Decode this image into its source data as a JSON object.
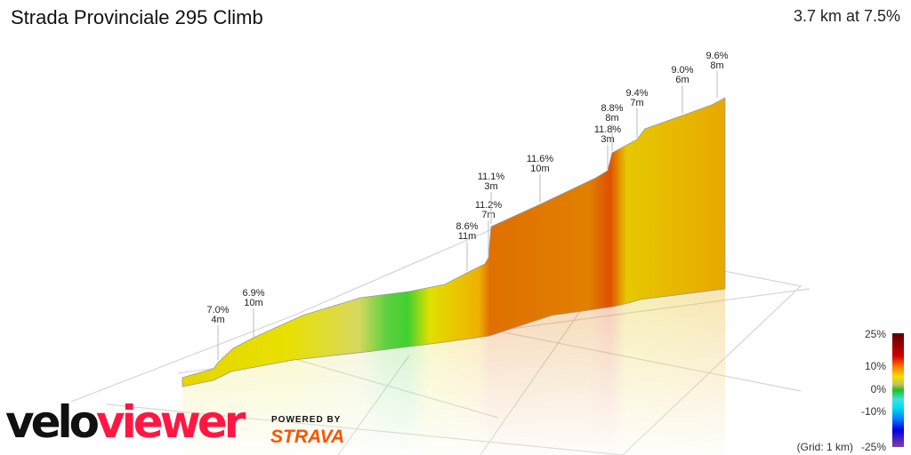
{
  "header": {
    "title": "Strada Provinciale 295 Climb",
    "summary": "3.7 km at 7.5%"
  },
  "chart_data": {
    "type": "area",
    "title": "Strada Provinciale 295 Climb",
    "subtitle": "3.7 km at 7.5%",
    "annotations": [
      {
        "grade": "7.0%",
        "length": "4m"
      },
      {
        "grade": "6.9%",
        "length": "10m"
      },
      {
        "grade": "8.6%",
        "length": "11m"
      },
      {
        "grade": "11.2%",
        "length": "7m"
      },
      {
        "grade": "11.1%",
        "length": "3m"
      },
      {
        "grade": "11.6%",
        "length": "10m"
      },
      {
        "grade": "11.8%",
        "length": "3m"
      },
      {
        "grade": "8.8%",
        "length": "8m"
      },
      {
        "grade": "9.4%",
        "length": "7m"
      },
      {
        "grade": "9.0%",
        "length": "6m"
      },
      {
        "grade": "9.6%",
        "length": "8m"
      }
    ],
    "legend": {
      "ticks": [
        "25%",
        "10%",
        "0%",
        "-10%",
        "-25%"
      ],
      "grid_label": "(Grid: 1 km)",
      "range": [
        -25,
        25
      ]
    }
  },
  "branding": {
    "velo": "velo",
    "viewer": "viewer",
    "powered_by": "POWERED BY",
    "strava": "STRAVA"
  },
  "colors": {
    "velo_red": "#ff1744",
    "strava_orange": "#fc5200"
  }
}
